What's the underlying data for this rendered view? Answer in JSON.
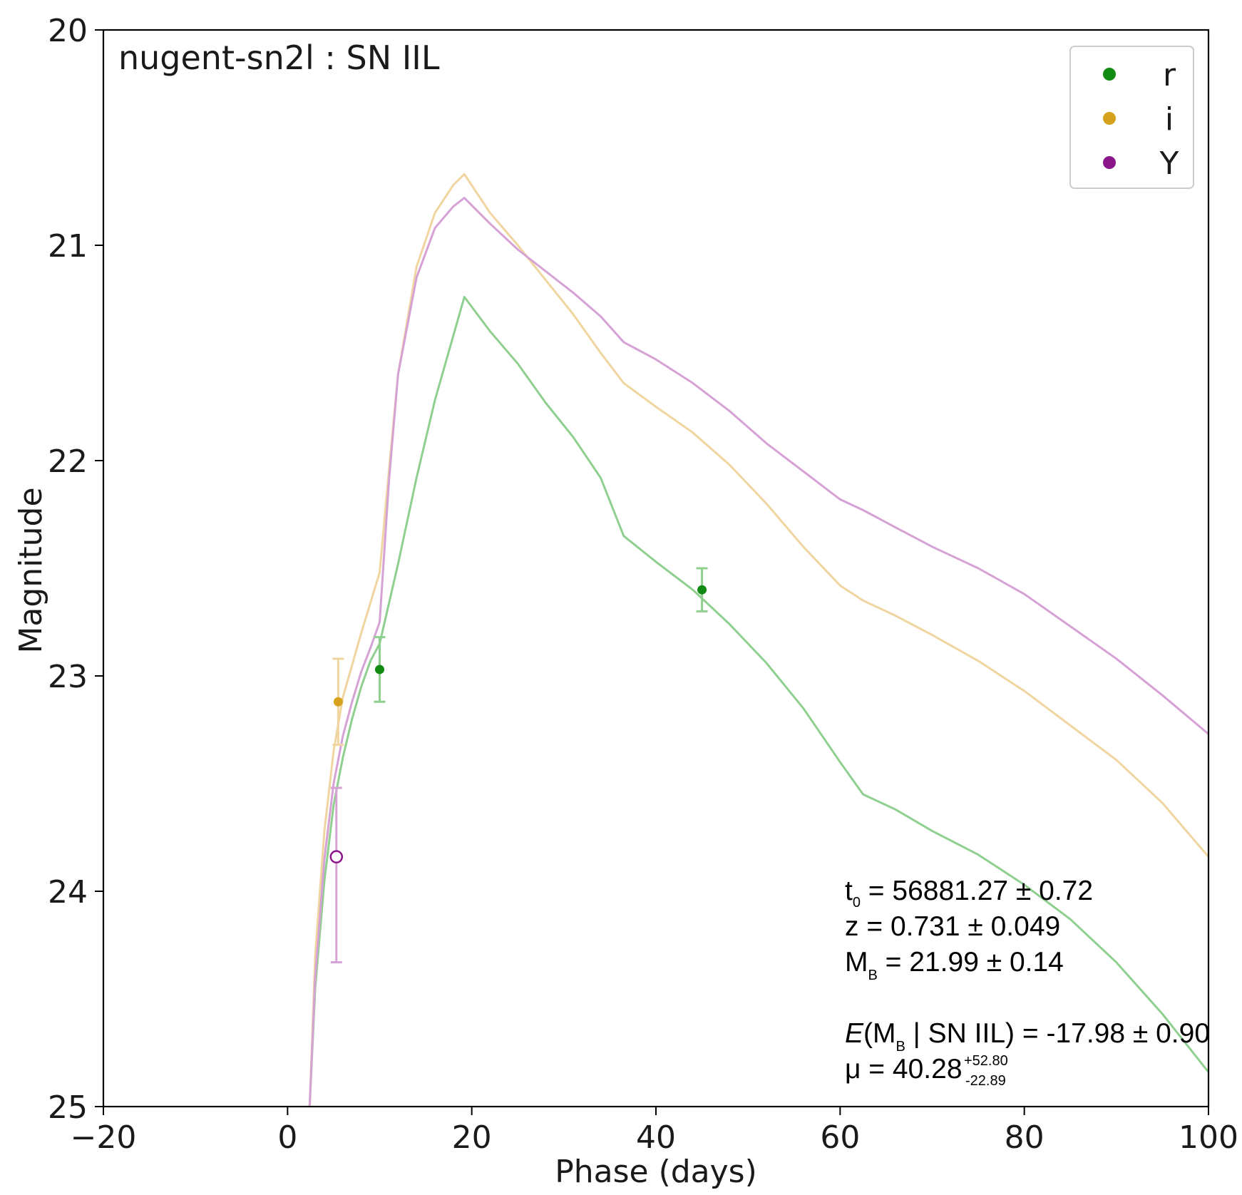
{
  "chart_data": {
    "type": "line",
    "title": "nugent-sn2l : SN IIL",
    "xlabel": "Phase (days)",
    "ylabel": "Magnitude",
    "xlim": [
      -20,
      100
    ],
    "ylim": [
      25,
      20
    ],
    "y_inverted": true,
    "grid": false,
    "legend_position": "top-right",
    "x_ticks": [
      -20,
      0,
      20,
      40,
      60,
      80,
      100
    ],
    "x_tick_labels": [
      "−20",
      "0",
      "20",
      "40",
      "60",
      "80",
      "100"
    ],
    "y_ticks": [
      20,
      21,
      22,
      23,
      24,
      25
    ],
    "y_tick_labels": [
      "20",
      "21",
      "22",
      "23",
      "24",
      "25"
    ],
    "series": [
      {
        "name": "r",
        "color": "#118a11",
        "model_color": "#8fcf8f",
        "model_curve": {
          "x": [
            2.4,
            3,
            4,
            5,
            6,
            7,
            8,
            9,
            10,
            12,
            14,
            16,
            18,
            19.2,
            22,
            25,
            28,
            31,
            34,
            36.5,
            40,
            44,
            48,
            52,
            56,
            60,
            62.5,
            66,
            70,
            75,
            80,
            85,
            90,
            95,
            100
          ],
          "y": [
            25.0,
            24.45,
            23.95,
            23.6,
            23.38,
            23.2,
            23.05,
            22.93,
            22.85,
            22.48,
            22.08,
            21.72,
            21.42,
            21.24,
            21.4,
            21.55,
            21.73,
            21.89,
            22.08,
            22.35,
            22.47,
            22.6,
            22.76,
            22.94,
            23.15,
            23.4,
            23.55,
            23.62,
            23.72,
            23.83,
            23.97,
            24.13,
            24.33,
            24.57,
            24.84
          ]
        },
        "points": [
          {
            "x": 10.0,
            "y": 22.97,
            "err": 0.15,
            "detected": true
          },
          {
            "x": 45.0,
            "y": 22.6,
            "err": 0.1,
            "detected": true
          }
        ]
      },
      {
        "name": "i",
        "color": "#d6a21e",
        "model_color": "#f0d5a0",
        "model_curve": {
          "x": [
            2.4,
            3,
            4,
            5,
            6,
            7,
            8,
            9,
            10,
            11,
            12,
            14,
            16,
            18,
            19.2,
            22,
            25,
            28,
            31,
            34,
            36.5,
            40,
            44,
            48,
            52,
            56,
            60,
            62.5,
            66,
            70,
            75,
            80,
            85,
            90,
            95,
            100
          ],
          "y": [
            25.0,
            24.3,
            23.72,
            23.35,
            23.1,
            22.95,
            22.8,
            22.66,
            22.52,
            22.05,
            21.6,
            21.1,
            20.85,
            20.72,
            20.67,
            20.85,
            21.0,
            21.16,
            21.32,
            21.5,
            21.64,
            21.75,
            21.87,
            22.02,
            22.2,
            22.4,
            22.58,
            22.65,
            22.72,
            22.81,
            22.93,
            23.07,
            23.23,
            23.39,
            23.59,
            23.84
          ]
        },
        "points": [
          {
            "x": 5.5,
            "y": 23.12,
            "err": 0.2,
            "detected": true
          }
        ]
      },
      {
        "name": "Y",
        "color": "#8a168a",
        "model_color": "#d6a2d6",
        "model_curve": {
          "x": [
            2.4,
            3,
            4,
            5,
            6,
            7,
            8,
            9,
            10,
            11,
            12,
            14,
            16,
            18,
            19.2,
            22,
            25,
            28,
            31,
            34,
            36.5,
            40,
            44,
            48,
            52,
            56,
            60,
            62.5,
            66,
            70,
            75,
            80,
            85,
            90,
            95,
            100
          ],
          "y": [
            25.0,
            24.4,
            23.85,
            23.5,
            23.28,
            23.12,
            22.98,
            22.87,
            22.75,
            22.1,
            21.6,
            21.15,
            20.92,
            20.82,
            20.78,
            20.9,
            21.02,
            21.12,
            21.22,
            21.33,
            21.45,
            21.53,
            21.64,
            21.77,
            21.92,
            22.05,
            22.18,
            22.23,
            22.31,
            22.4,
            22.5,
            22.62,
            22.77,
            22.92,
            23.09,
            23.27
          ]
        },
        "points": [
          {
            "x": 5.3,
            "y": 23.84,
            "err": 0.42,
            "err_up": 0.32,
            "err_down": 0.49,
            "detected": false
          }
        ]
      }
    ],
    "annotations": {
      "t0_label": "t",
      "t0_sub": "0",
      "t0_value": " = 56881.27 ± 0.72",
      "z_line": "z = 0.731 ± 0.049",
      "mb_label": "M",
      "mb_sub": "B",
      "mb_value": " = 21.99 ± 0.14",
      "emb_E": "E",
      "emb_open": "(M",
      "emb_sub": "B",
      "emb_rest": " | SN IIL) =  -17.98 ± 0.90",
      "mu_main": "μ = 40.28",
      "mu_sup": "+52.80",
      "mu_sub": "-22.89"
    }
  }
}
